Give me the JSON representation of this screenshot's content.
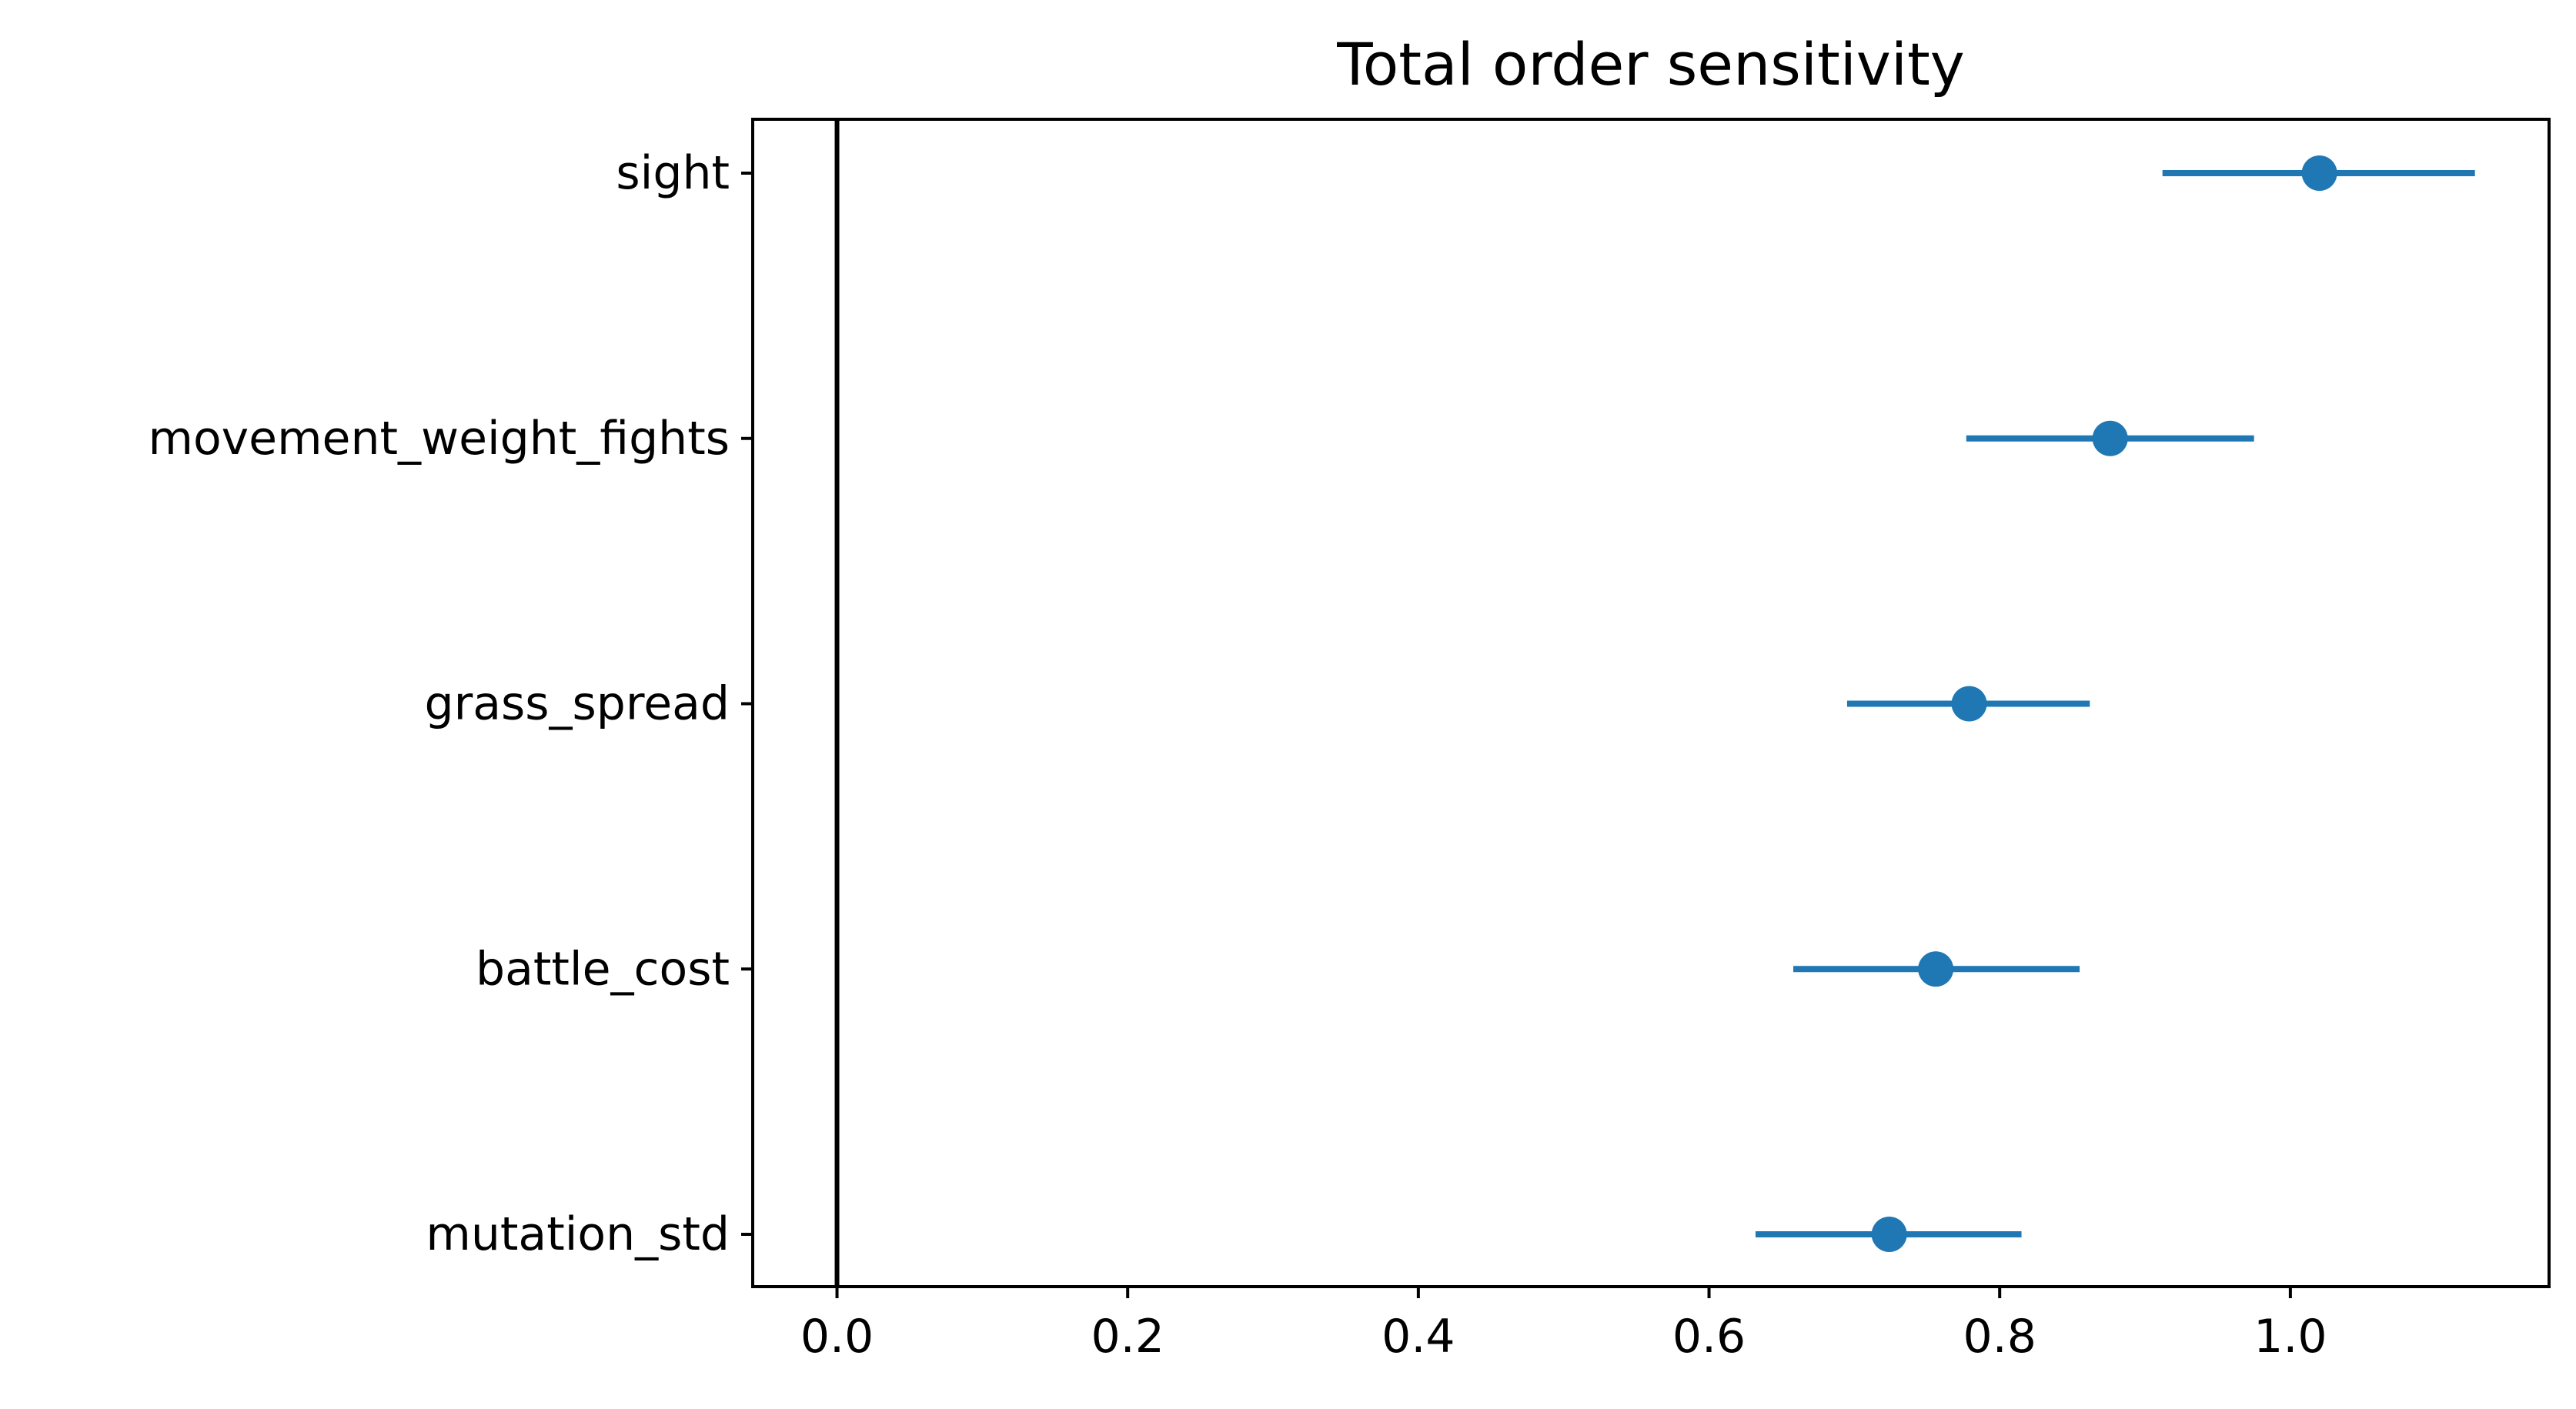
{
  "chart_data": {
    "type": "scatter",
    "title": "Total order sensitivity",
    "xlabel": "",
    "ylabel": "",
    "xlim": [
      -0.058,
      1.178
    ],
    "xticks": [
      0.0,
      0.2,
      0.4,
      0.6,
      0.8,
      1.0
    ],
    "xtick_labels": [
      "0.0",
      "0.2",
      "0.4",
      "0.6",
      "0.8",
      "1.0"
    ],
    "categories": [
      "sight",
      "movement_weight_fights",
      "grass_spread",
      "battle_cost",
      "mutation_std"
    ],
    "values": [
      1.02,
      0.876,
      0.779,
      0.756,
      0.724
    ],
    "ci_low": [
      0.912,
      0.777,
      0.695,
      0.658,
      0.632
    ],
    "ci_high": [
      1.127,
      0.975,
      0.862,
      0.855,
      0.815
    ],
    "reference_line_x": 0.0,
    "grid": false,
    "colors": {
      "series": "#1f77b4",
      "axis": "#000000"
    }
  }
}
